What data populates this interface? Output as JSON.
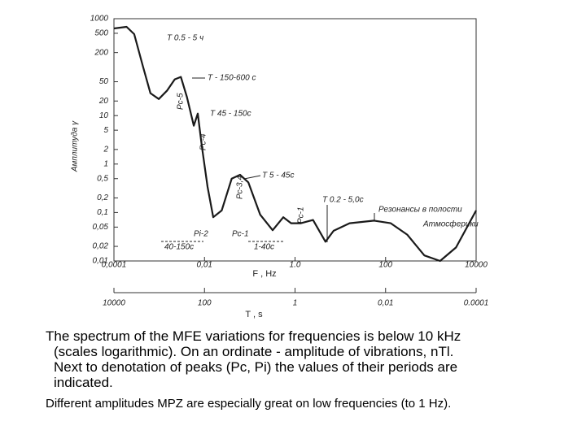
{
  "chart_data": {
    "type": "line",
    "y_label": "Амплитуда γ",
    "x_label": "F , Hz",
    "x": [
      0.0001,
      0.00019,
      0.00028,
      0.00043,
      0.00064,
      0.00098,
      0.0015,
      0.0022,
      0.003,
      0.0041,
      0.0058,
      0.0071,
      0.0087,
      0.0117,
      0.0156,
      0.024,
      0.04,
      0.061,
      0.093,
      0.17,
      0.32,
      0.55,
      0.82,
      1.35,
      2.5,
      4.7,
      7.1,
      16,
      56,
      130,
      300,
      720,
      1600,
      3600,
      10000
    ],
    "series": [
      {
        "name": "Амплитуда",
        "color": "#1a1a1a",
        "values": [
          630,
          680,
          480,
          110,
          29,
          22,
          33,
          56,
          63,
          24,
          6.2,
          11,
          2.4,
          0.34,
          0.08,
          0.11,
          0.5,
          0.6,
          0.42,
          0.09,
          0.043,
          0.08,
          0.06,
          0.06,
          0.07,
          0.025,
          0.042,
          0.06,
          0.068,
          0.06,
          0.035,
          0.013,
          0.01,
          0.019,
          0.11
        ]
      }
    ],
    "xlim": [
      0.0001,
      10000
    ],
    "ylim": [
      0.01,
      1000
    ],
    "xscale": "log",
    "yscale": "log",
    "xticks": [
      {
        "value": 0.0001,
        "label": "0,0001"
      },
      {
        "value": 0.01,
        "label": "0,01"
      },
      {
        "value": 1,
        "label": "1.0"
      },
      100,
      10000
    ],
    "yticks": [
      1000,
      500,
      200,
      50,
      20,
      10,
      5,
      2,
      1,
      {
        "value": 0.5,
        "label": "0,5"
      },
      {
        "value": 0.2,
        "label": "0,2"
      },
      {
        "value": 0.1,
        "label": "0,1"
      },
      {
        "value": 0.05,
        "label": "0,05"
      },
      {
        "value": 0.02,
        "label": "0,02"
      },
      {
        "value": 0.01,
        "label": "0,01"
      }
    ],
    "period_axis": {
      "label": "T , s",
      "ticks": [
        10000,
        100,
        1,
        {
          "value": 0.01,
          "label": "0,01"
        },
        {
          "value": 0.0001,
          "label": "0.0001"
        }
      ]
    },
    "annotations": [
      "T 0.5 - 5 ч",
      "T - 150-600 c",
      "T 45 - 150c",
      "T 5 - 45c",
      "T 0.2 - 5,0c",
      "Pc-5",
      "Pc-4",
      "Pc-3,4",
      "Pc-1",
      "Pi-2",
      "Pc-1",
      "40-150c",
      "1-40c",
      "Резонансы в полости",
      "Атмосферики"
    ]
  },
  "caption": {
    "paragraph1": [
      "The spectrum of the MFE variations for frequencies is below 10 kHz",
      "(scales logarithmic). On an ordinate - amplitude of vibrations,  nTl.",
      "Next to denotation of peaks (Pc, Pi) the values of their periods are",
      "indicated."
    ],
    "paragraph2": "Different amplitudes MPZ are especially great on low frequencies (to 1 Hz)."
  }
}
